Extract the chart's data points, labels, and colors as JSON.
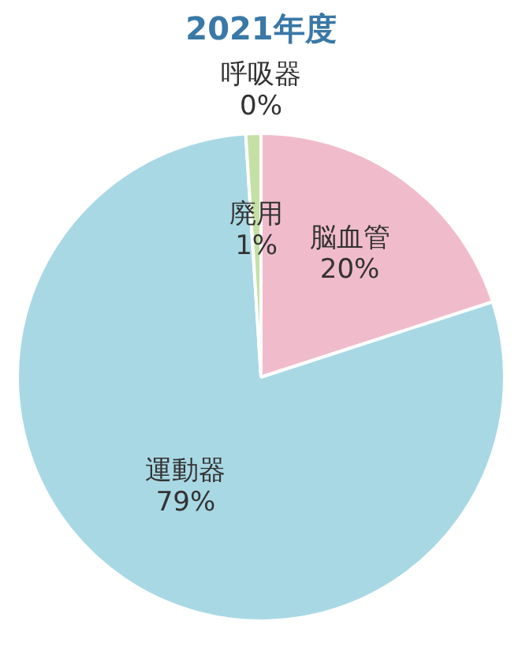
{
  "chart_data": {
    "type": "pie",
    "title": "2021年度",
    "categories": [
      "脳血管",
      "運動器",
      "廃用",
      "呼吸器"
    ],
    "values": [
      20,
      79,
      1,
      0
    ],
    "colors": [
      "#f0bccb",
      "#a8d8e4",
      "#c5e0a5",
      "#f3d58a"
    ],
    "value_labels": [
      "20%",
      "79%",
      "1%",
      "0%"
    ],
    "legend": false
  }
}
